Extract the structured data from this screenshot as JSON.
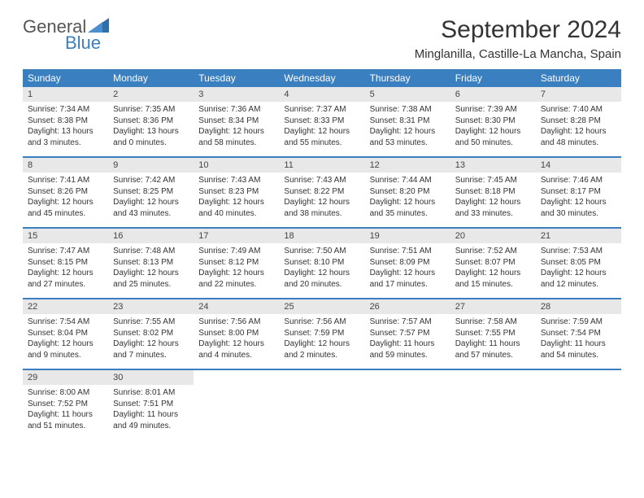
{
  "logo": {
    "part1": "General",
    "part2": "Blue"
  },
  "title": "September 2024",
  "location": "Minglanilla, Castille-La Mancha, Spain",
  "colors": {
    "header_bg": "#3a7fbf",
    "header_text": "#ffffff",
    "daynum_bg": "#e8e8e8",
    "border": "#3a7fbf",
    "text": "#333333"
  },
  "dayNames": [
    "Sunday",
    "Monday",
    "Tuesday",
    "Wednesday",
    "Thursday",
    "Friday",
    "Saturday"
  ],
  "weeks": [
    [
      {
        "num": "1",
        "sunrise": "Sunrise: 7:34 AM",
        "sunset": "Sunset: 8:38 PM",
        "daylight": "Daylight: 13 hours and 3 minutes."
      },
      {
        "num": "2",
        "sunrise": "Sunrise: 7:35 AM",
        "sunset": "Sunset: 8:36 PM",
        "daylight": "Daylight: 13 hours and 0 minutes."
      },
      {
        "num": "3",
        "sunrise": "Sunrise: 7:36 AM",
        "sunset": "Sunset: 8:34 PM",
        "daylight": "Daylight: 12 hours and 58 minutes."
      },
      {
        "num": "4",
        "sunrise": "Sunrise: 7:37 AM",
        "sunset": "Sunset: 8:33 PM",
        "daylight": "Daylight: 12 hours and 55 minutes."
      },
      {
        "num": "5",
        "sunrise": "Sunrise: 7:38 AM",
        "sunset": "Sunset: 8:31 PM",
        "daylight": "Daylight: 12 hours and 53 minutes."
      },
      {
        "num": "6",
        "sunrise": "Sunrise: 7:39 AM",
        "sunset": "Sunset: 8:30 PM",
        "daylight": "Daylight: 12 hours and 50 minutes."
      },
      {
        "num": "7",
        "sunrise": "Sunrise: 7:40 AM",
        "sunset": "Sunset: 8:28 PM",
        "daylight": "Daylight: 12 hours and 48 minutes."
      }
    ],
    [
      {
        "num": "8",
        "sunrise": "Sunrise: 7:41 AM",
        "sunset": "Sunset: 8:26 PM",
        "daylight": "Daylight: 12 hours and 45 minutes."
      },
      {
        "num": "9",
        "sunrise": "Sunrise: 7:42 AM",
        "sunset": "Sunset: 8:25 PM",
        "daylight": "Daylight: 12 hours and 43 minutes."
      },
      {
        "num": "10",
        "sunrise": "Sunrise: 7:43 AM",
        "sunset": "Sunset: 8:23 PM",
        "daylight": "Daylight: 12 hours and 40 minutes."
      },
      {
        "num": "11",
        "sunrise": "Sunrise: 7:43 AM",
        "sunset": "Sunset: 8:22 PM",
        "daylight": "Daylight: 12 hours and 38 minutes."
      },
      {
        "num": "12",
        "sunrise": "Sunrise: 7:44 AM",
        "sunset": "Sunset: 8:20 PM",
        "daylight": "Daylight: 12 hours and 35 minutes."
      },
      {
        "num": "13",
        "sunrise": "Sunrise: 7:45 AM",
        "sunset": "Sunset: 8:18 PM",
        "daylight": "Daylight: 12 hours and 33 minutes."
      },
      {
        "num": "14",
        "sunrise": "Sunrise: 7:46 AM",
        "sunset": "Sunset: 8:17 PM",
        "daylight": "Daylight: 12 hours and 30 minutes."
      }
    ],
    [
      {
        "num": "15",
        "sunrise": "Sunrise: 7:47 AM",
        "sunset": "Sunset: 8:15 PM",
        "daylight": "Daylight: 12 hours and 27 minutes."
      },
      {
        "num": "16",
        "sunrise": "Sunrise: 7:48 AM",
        "sunset": "Sunset: 8:13 PM",
        "daylight": "Daylight: 12 hours and 25 minutes."
      },
      {
        "num": "17",
        "sunrise": "Sunrise: 7:49 AM",
        "sunset": "Sunset: 8:12 PM",
        "daylight": "Daylight: 12 hours and 22 minutes."
      },
      {
        "num": "18",
        "sunrise": "Sunrise: 7:50 AM",
        "sunset": "Sunset: 8:10 PM",
        "daylight": "Daylight: 12 hours and 20 minutes."
      },
      {
        "num": "19",
        "sunrise": "Sunrise: 7:51 AM",
        "sunset": "Sunset: 8:09 PM",
        "daylight": "Daylight: 12 hours and 17 minutes."
      },
      {
        "num": "20",
        "sunrise": "Sunrise: 7:52 AM",
        "sunset": "Sunset: 8:07 PM",
        "daylight": "Daylight: 12 hours and 15 minutes."
      },
      {
        "num": "21",
        "sunrise": "Sunrise: 7:53 AM",
        "sunset": "Sunset: 8:05 PM",
        "daylight": "Daylight: 12 hours and 12 minutes."
      }
    ],
    [
      {
        "num": "22",
        "sunrise": "Sunrise: 7:54 AM",
        "sunset": "Sunset: 8:04 PM",
        "daylight": "Daylight: 12 hours and 9 minutes."
      },
      {
        "num": "23",
        "sunrise": "Sunrise: 7:55 AM",
        "sunset": "Sunset: 8:02 PM",
        "daylight": "Daylight: 12 hours and 7 minutes."
      },
      {
        "num": "24",
        "sunrise": "Sunrise: 7:56 AM",
        "sunset": "Sunset: 8:00 PM",
        "daylight": "Daylight: 12 hours and 4 minutes."
      },
      {
        "num": "25",
        "sunrise": "Sunrise: 7:56 AM",
        "sunset": "Sunset: 7:59 PM",
        "daylight": "Daylight: 12 hours and 2 minutes."
      },
      {
        "num": "26",
        "sunrise": "Sunrise: 7:57 AM",
        "sunset": "Sunset: 7:57 PM",
        "daylight": "Daylight: 11 hours and 59 minutes."
      },
      {
        "num": "27",
        "sunrise": "Sunrise: 7:58 AM",
        "sunset": "Sunset: 7:55 PM",
        "daylight": "Daylight: 11 hours and 57 minutes."
      },
      {
        "num": "28",
        "sunrise": "Sunrise: 7:59 AM",
        "sunset": "Sunset: 7:54 PM",
        "daylight": "Daylight: 11 hours and 54 minutes."
      }
    ],
    [
      {
        "num": "29",
        "sunrise": "Sunrise: 8:00 AM",
        "sunset": "Sunset: 7:52 PM",
        "daylight": "Daylight: 11 hours and 51 minutes."
      },
      {
        "num": "30",
        "sunrise": "Sunrise: 8:01 AM",
        "sunset": "Sunset: 7:51 PM",
        "daylight": "Daylight: 11 hours and 49 minutes."
      },
      null,
      null,
      null,
      null,
      null
    ]
  ]
}
